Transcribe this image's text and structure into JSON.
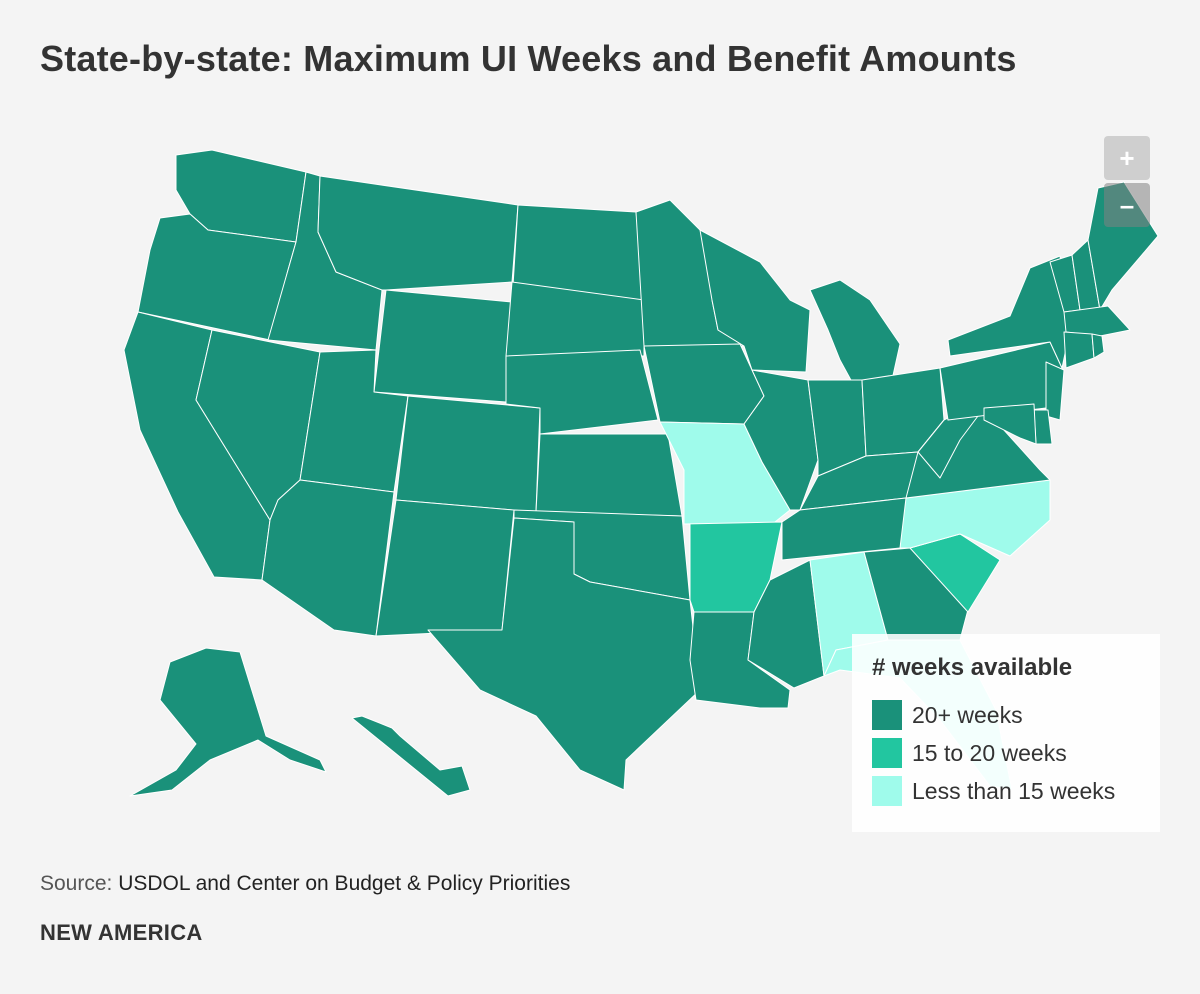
{
  "title": "State-by-state: Maximum UI Weeks and Benefit Amounts",
  "zoom": {
    "in_label": "+",
    "out_label": "–"
  },
  "legend": {
    "title": "# weeks available",
    "items": [
      {
        "label": "20+ weeks",
        "color": "#1a917a"
      },
      {
        "label": "15 to 20 weeks",
        "color": "#22c6a0"
      },
      {
        "label": "Less than 15 weeks",
        "color": "#9ffbeb"
      }
    ]
  },
  "source": {
    "key": "Source:",
    "value": "USDOL and Center on Budget & Policy Priorities"
  },
  "brand": "NEW AMERICA",
  "categories": {
    "WA": "20+ weeks",
    "OR": "20+ weeks",
    "CA": "20+ weeks",
    "ID": "20+ weeks",
    "NV": "20+ weeks",
    "MT": "20+ weeks",
    "WY": "20+ weeks",
    "UT": "20+ weeks",
    "AZ": "20+ weeks",
    "CO": "20+ weeks",
    "NM": "20+ weeks",
    "ND": "20+ weeks",
    "SD": "20+ weeks",
    "NE": "20+ weeks",
    "KS": "20+ weeks",
    "OK": "20+ weeks",
    "TX": "20+ weeks",
    "MN": "20+ weeks",
    "IA": "20+ weeks",
    "MO": "Less than 15 weeks",
    "AR": "15 to 20 weeks",
    "LA": "20+ weeks",
    "WI": "20+ weeks",
    "IL": "20+ weeks",
    "MI": "20+ weeks",
    "IN": "20+ weeks",
    "OH": "20+ weeks",
    "KY": "20+ weeks",
    "TN": "20+ weeks",
    "MS": "20+ weeks",
    "AL": "Less than 15 weeks",
    "GA": "20+ weeks",
    "FL": "Less than 15 weeks",
    "SC": "15 to 20 weeks",
    "NC": "Less than 15 weeks",
    "VA": "20+ weeks",
    "WV": "20+ weeks",
    "PA": "20+ weeks",
    "NY": "20+ weeks",
    "VT": "20+ weeks",
    "NH": "20+ weeks",
    "ME": "20+ weeks",
    "MA": "20+ weeks",
    "CT": "20+ weeks",
    "RI": "20+ weeks",
    "NJ": "20+ weeks",
    "DE": "20+ weeks",
    "MD": "20+ weeks",
    "AK": "20+ weeks",
    "HI": "20+ weeks"
  }
}
